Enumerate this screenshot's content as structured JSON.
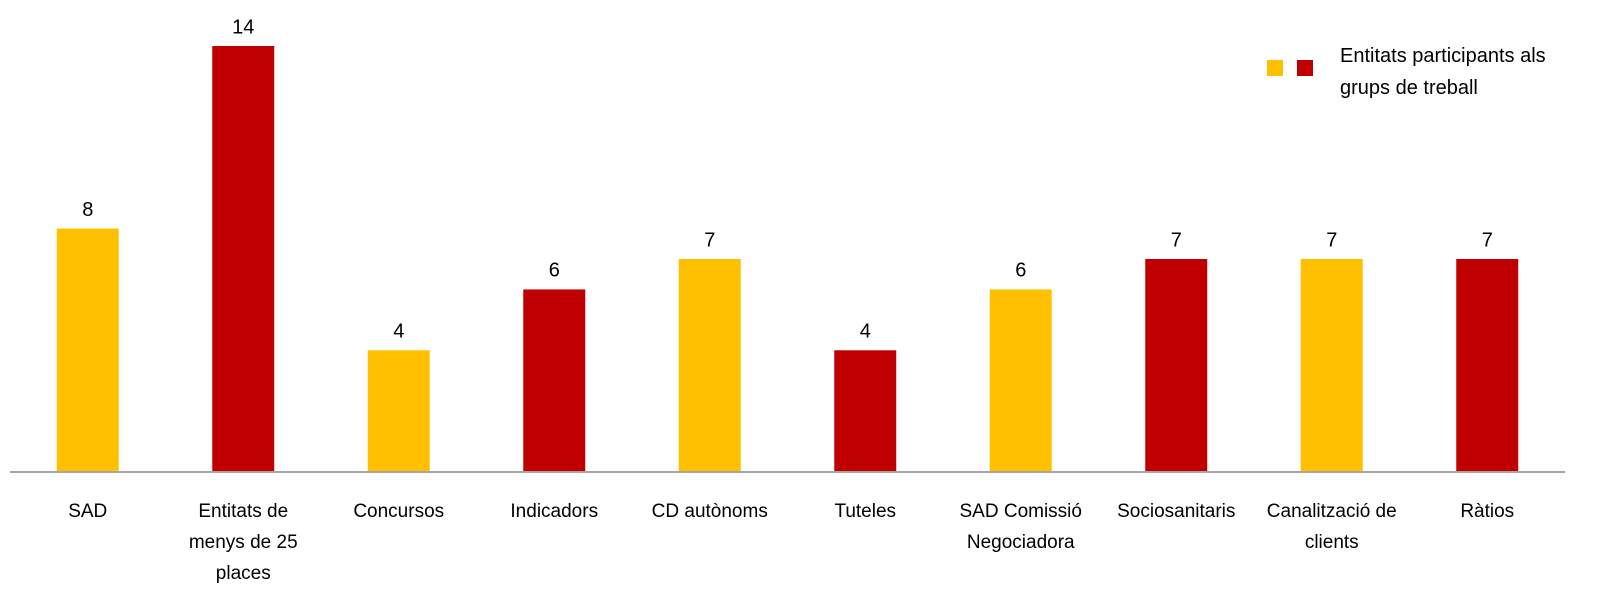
{
  "chart_data": {
    "type": "bar",
    "categories": [
      "SAD",
      "Entitats de menys de 25 places",
      "Concursos",
      "Indicadors",
      "CD autònoms",
      "Tuteles",
      "SAD Comissió Negociadora",
      "Sociosanitaris",
      "Canalització de clients",
      "Ràtios"
    ],
    "values": [
      8,
      14,
      4,
      6,
      7,
      4,
      6,
      7,
      7,
      7
    ],
    "colors": [
      "#ffc000",
      "#c00000",
      "#ffc000",
      "#c00000",
      "#ffc000",
      "#c00000",
      "#ffc000",
      "#c00000",
      "#ffc000",
      "#c00000"
    ],
    "ylim": [
      0,
      14
    ],
    "legend": {
      "label": "Entitats participants als grups de treball",
      "colors": [
        "#ffc000",
        "#c00000"
      ],
      "position": "upper right"
    }
  }
}
